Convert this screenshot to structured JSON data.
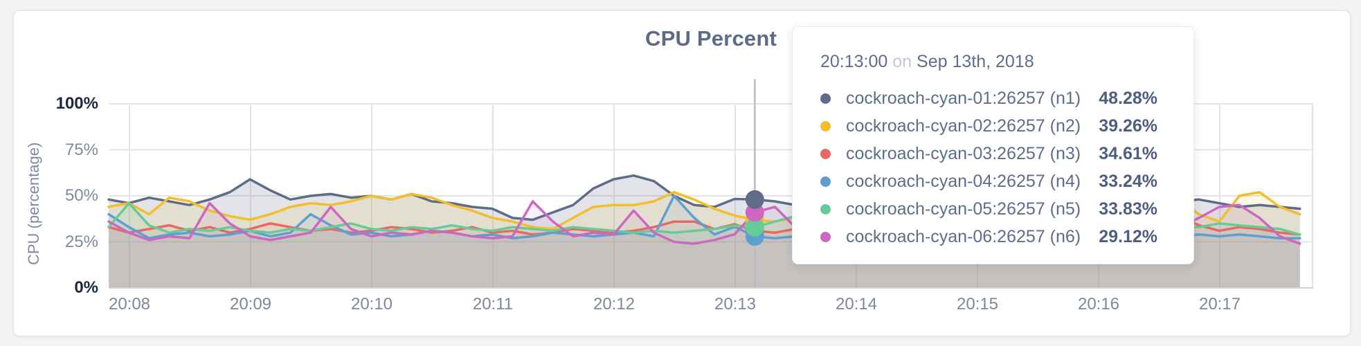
{
  "card": {
    "background": "#ffffff",
    "page_background": "#f4f4f5"
  },
  "tooltip": {
    "time": "20:13:00",
    "on_word": "on",
    "date": "Sep 13th, 2018",
    "rows": [
      {
        "name": "cockroach-cyan-01:26257 (n1)",
        "value": "48.28%",
        "color": "#5f6c87"
      },
      {
        "name": "cockroach-cyan-02:26257 (n2)",
        "value": "39.26%",
        "color": "#f2be2c"
      },
      {
        "name": "cockroach-cyan-03:26257 (n3)",
        "value": "34.61%",
        "color": "#e66a62"
      },
      {
        "name": "cockroach-cyan-04:26257 (n4)",
        "value": "33.24%",
        "color": "#5d9fd3"
      },
      {
        "name": "cockroach-cyan-05:26257 (n5)",
        "value": "33.83%",
        "color": "#66cb96"
      },
      {
        "name": "cockroach-cyan-06:26257 (n6)",
        "value": "29.12%",
        "color": "#cc67c2"
      }
    ]
  },
  "chart_data": {
    "type": "line",
    "title": "CPU Percent",
    "ylabel": "CPU (percentage)",
    "ylim": [
      0,
      100
    ],
    "grid": true,
    "legend_position": "tooltip",
    "y_ticks": [
      {
        "label": "0%",
        "value": 0,
        "strong": true
      },
      {
        "label": "25%",
        "value": 25,
        "strong": false
      },
      {
        "label": "50%",
        "value": 50,
        "strong": false
      },
      {
        "label": "75%",
        "value": 75,
        "strong": false
      },
      {
        "label": "100%",
        "value": 100,
        "strong": true
      }
    ],
    "x_ticks": [
      "20:08",
      "20:09",
      "20:10",
      "20:11",
      "20:12",
      "20:13",
      "20:14",
      "20:15",
      "20:16",
      "20:17"
    ],
    "x_start": "20:07:50",
    "sample_interval_seconds": 10,
    "hover": {
      "time": "20:13:00",
      "date": "Sep 13th, 2018",
      "point_index": 32
    },
    "series": [
      {
        "name": "cockroach-cyan-01:26257 (n1)",
        "color": "#5f6c87",
        "fill_opacity": 0.18,
        "values": [
          48,
          46,
          49,
          47,
          45,
          48,
          52,
          59,
          53,
          48,
          50,
          51,
          49,
          50,
          48,
          51,
          47,
          46,
          44,
          43,
          38,
          37,
          41,
          45,
          54,
          59,
          61,
          58,
          50,
          45,
          44,
          48.3,
          48,
          47,
          45,
          44,
          45,
          46,
          45,
          44,
          45,
          46,
          44,
          45,
          44,
          43,
          44,
          45,
          44,
          45,
          46,
          44,
          45,
          47,
          48,
          46,
          44,
          45,
          44,
          43
        ]
      },
      {
        "name": "cockroach-cyan-02:26257 (n2)",
        "color": "#f2be2c",
        "fill_opacity": 0.13,
        "values": [
          44,
          46,
          40,
          49,
          47,
          42,
          39,
          37,
          40,
          44,
          46,
          45,
          47,
          50,
          48,
          51,
          49,
          45,
          42,
          38,
          36,
          33,
          32,
          38,
          44,
          45,
          45,
          47,
          52,
          48,
          43,
          39.3,
          37,
          36,
          38,
          37,
          38,
          37,
          38,
          37,
          38,
          39,
          38,
          37,
          38,
          37,
          38,
          37,
          38,
          39,
          38,
          46,
          51,
          48,
          40,
          36,
          50,
          52,
          44,
          40
        ]
      },
      {
        "name": "cockroach-cyan-03:26257 (n3)",
        "color": "#e66a62",
        "fill_opacity": 0.1,
        "values": [
          33,
          30,
          32,
          34,
          31,
          33,
          30,
          32,
          35,
          33,
          31,
          32,
          30,
          31,
          33,
          32,
          30,
          31,
          33,
          30,
          31,
          29,
          30,
          32,
          31,
          30,
          31,
          33,
          36,
          36,
          32,
          34.6,
          31,
          30,
          32,
          31,
          30,
          31,
          32,
          31,
          30,
          31,
          32,
          31,
          30,
          31,
          33,
          32,
          31,
          30,
          31,
          35,
          33,
          39,
          34,
          31,
          33,
          32,
          30,
          29
        ]
      },
      {
        "name": "cockroach-cyan-04:26257 (n4)",
        "color": "#5d9fd3",
        "fill_opacity": 0.1,
        "values": [
          40,
          33,
          27,
          29,
          30,
          28,
          29,
          31,
          28,
          30,
          40,
          34,
          29,
          30,
          28,
          29,
          31,
          30,
          28,
          29,
          27,
          28,
          30,
          29,
          28,
          29,
          30,
          28,
          50,
          38,
          29,
          33.2,
          28,
          27,
          28,
          27,
          29,
          28,
          29,
          28,
          27,
          28,
          29,
          28,
          29,
          28,
          27,
          28,
          29,
          28,
          29,
          28,
          29,
          28,
          29,
          28,
          29,
          28,
          27,
          27
        ]
      },
      {
        "name": "cockroach-cyan-05:26257 (n5)",
        "color": "#66cb96",
        "fill_opacity": 0.13,
        "values": [
          33,
          46,
          34,
          30,
          32,
          31,
          33,
          31,
          30,
          32,
          31,
          33,
          35,
          32,
          31,
          33,
          32,
          34,
          32,
          31,
          33,
          32,
          31,
          33,
          32,
          31,
          30,
          31,
          30,
          31,
          32,
          33.8,
          33,
          36,
          39,
          35,
          33,
          32,
          33,
          34,
          32,
          33,
          32,
          33,
          32,
          34,
          33,
          32,
          33,
          32,
          33,
          34,
          36,
          34,
          33,
          35,
          34,
          33,
          32,
          29
        ]
      },
      {
        "name": "cockroach-cyan-06:26257 (n6)",
        "color": "#cc67c2",
        "fill_opacity": 0.1,
        "values": [
          36,
          30,
          26,
          28,
          27,
          46,
          35,
          28,
          26,
          28,
          30,
          44,
          32,
          28,
          30,
          29,
          31,
          30,
          28,
          27,
          28,
          47,
          36,
          28,
          30,
          29,
          42,
          30,
          25,
          24,
          26,
          29.1,
          41,
          44,
          33,
          29,
          30,
          29,
          28,
          30,
          31,
          29,
          30,
          29,
          31,
          30,
          29,
          31,
          30,
          29,
          28,
          30,
          31,
          33,
          38,
          44,
          45,
          38,
          28,
          24
        ]
      }
    ],
    "colors": {
      "gridline": "#e4e4e6",
      "axis_bottom": "#cfcfcf",
      "hover_line": "#b9bcc0",
      "tick_text": "#7d8799",
      "tick_text_strong": "#1c2840",
      "title_text": "#5b6b88"
    }
  }
}
